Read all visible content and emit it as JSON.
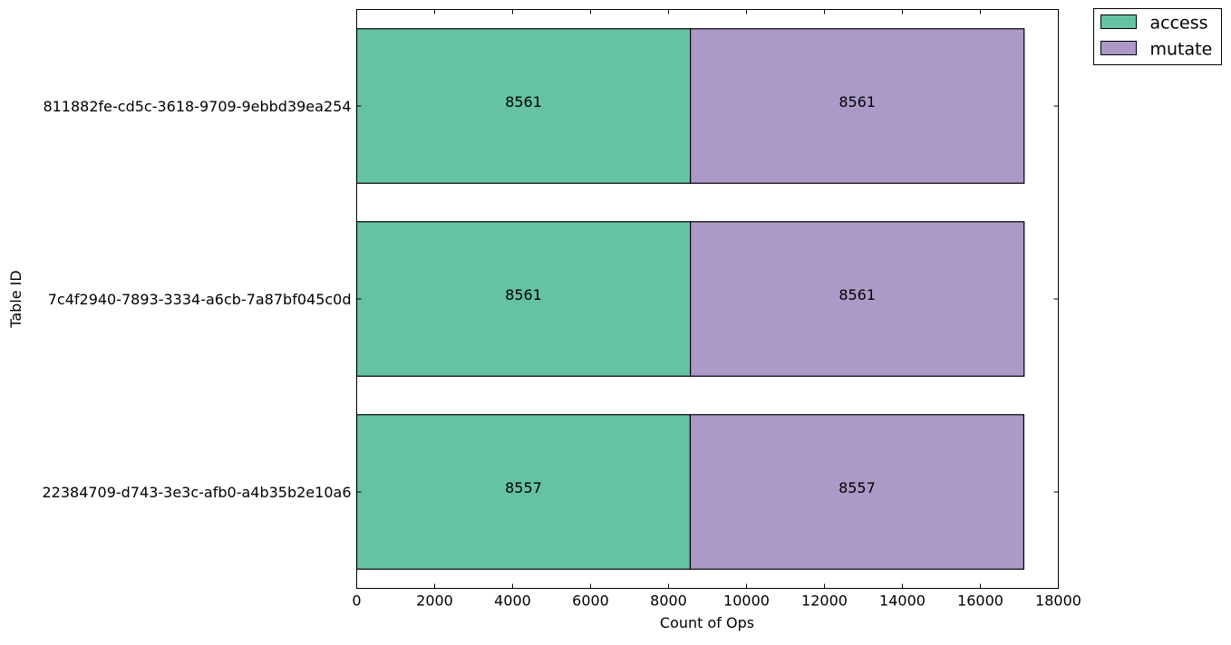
{
  "chart_data": {
    "type": "bar",
    "orientation": "horizontal",
    "stacked": true,
    "title": "",
    "xlabel": "Count of Ops",
    "ylabel": "Table ID",
    "xlim": [
      0,
      18000
    ],
    "xticks": [
      0,
      2000,
      4000,
      6000,
      8000,
      10000,
      12000,
      14000,
      16000,
      18000
    ],
    "grid": false,
    "legend_position": "outside-top-right",
    "categories": [
      "811882fe-cd5c-3618-9709-9ebbd39ea254",
      "7c4f2940-7893-3334-a6cb-7a87bf045c0d",
      "22384709-d743-3e3c-afb0-a4b35b2e10a6"
    ],
    "series": [
      {
        "name": "access",
        "color": "#66c2a5",
        "values": [
          8561,
          8561,
          8557
        ]
      },
      {
        "name": "mutate",
        "color": "#ab9ac7",
        "values": [
          8561,
          8561,
          8557
        ]
      }
    ],
    "data_labels": [
      [
        "8561",
        "8561"
      ],
      [
        "8561",
        "8561"
      ],
      [
        "8557",
        "8557"
      ]
    ]
  }
}
